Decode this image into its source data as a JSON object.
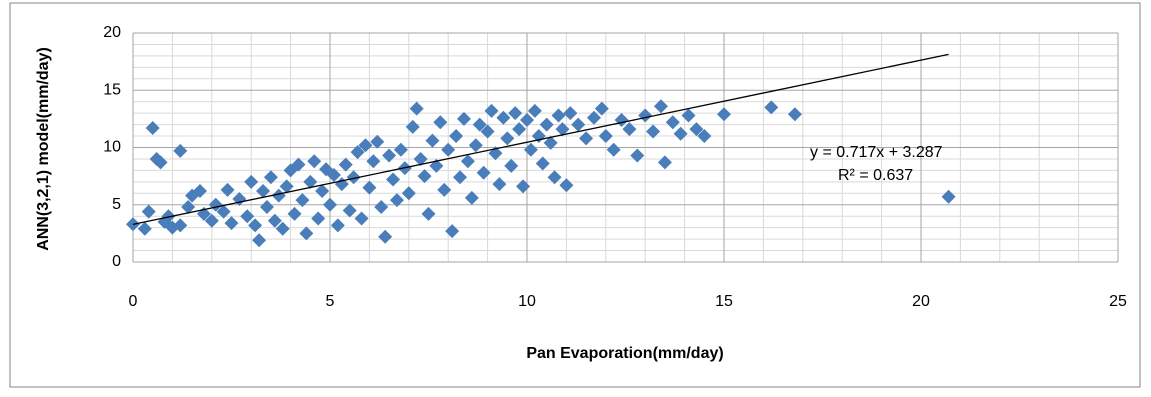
{
  "chart_data": {
    "type": "scatter",
    "xlabel": "Pan Evaporation(mm/day)",
    "ylabel": "ANN(3,2,1) model(mm/day)",
    "color": "#4a7ebb",
    "xlim": [
      0,
      25
    ],
    "xticks": [
      0,
      5,
      10,
      15,
      20,
      25
    ],
    "ylim": [
      0,
      20
    ],
    "yticks": [
      0,
      5,
      10,
      15,
      20
    ],
    "grid": true,
    "minor_xticks": [
      1,
      2,
      3,
      4,
      6,
      7,
      8,
      9,
      11,
      12,
      13,
      14,
      16,
      17,
      18,
      19,
      21,
      22,
      23,
      24
    ],
    "minor_yticks": [
      1,
      2,
      3,
      4,
      6,
      7,
      8,
      9,
      11,
      12,
      13,
      14,
      16,
      17,
      18,
      19
    ],
    "x": [
      0,
      0.3,
      0.4,
      0.5,
      0.6,
      0.7,
      0.8,
      0.9,
      1.0,
      1.2,
      1.2,
      1.4,
      1.5,
      1.7,
      1.8,
      2.0,
      2.1,
      2.3,
      2.4,
      2.5,
      2.7,
      2.9,
      3.0,
      3.1,
      3.2,
      3.3,
      3.4,
      3.5,
      3.6,
      3.7,
      3.8,
      3.9,
      4.0,
      4.1,
      4.2,
      4.3,
      4.4,
      4.5,
      4.6,
      4.7,
      4.8,
      4.9,
      5.0,
      5.1,
      5.2,
      5.3,
      5.4,
      5.5,
      5.6,
      5.7,
      5.8,
      5.9,
      6.0,
      6.1,
      6.2,
      6.3,
      6.4,
      6.5,
      6.6,
      6.7,
      6.8,
      6.9,
      7.0,
      7.1,
      7.2,
      7.3,
      7.4,
      7.5,
      7.6,
      7.7,
      7.8,
      7.9,
      8.0,
      8.1,
      8.2,
      8.3,
      8.4,
      8.5,
      8.6,
      8.7,
      8.8,
      8.9,
      9.0,
      9.1,
      9.2,
      9.3,
      9.4,
      9.5,
      9.6,
      9.7,
      9.8,
      9.9,
      10.0,
      10.1,
      10.2,
      10.3,
      10.4,
      10.5,
      10.6,
      10.7,
      10.8,
      10.9,
      11.0,
      11.1,
      11.3,
      11.5,
      11.7,
      11.9,
      12.0,
      12.2,
      12.4,
      12.6,
      12.8,
      13.0,
      13.2,
      13.4,
      13.5,
      13.7,
      13.9,
      14.1,
      14.3,
      14.5,
      15.0,
      16.2,
      16.8,
      20.7
    ],
    "values": [
      3.3,
      2.9,
      4.4,
      11.7,
      9.0,
      8.7,
      3.5,
      4.0,
      3.0,
      9.7,
      3.2,
      4.8,
      5.8,
      6.2,
      4.2,
      3.6,
      5.0,
      4.4,
      6.3,
      3.4,
      5.5,
      4.0,
      7.0,
      3.2,
      1.9,
      6.2,
      4.8,
      7.4,
      3.6,
      5.8,
      2.9,
      6.6,
      8.0,
      4.2,
      8.5,
      5.4,
      2.5,
      7.0,
      8.8,
      3.8,
      6.2,
      8.1,
      5.0,
      7.6,
      3.2,
      6.8,
      8.5,
      4.5,
      7.4,
      9.6,
      3.8,
      10.2,
      6.5,
      8.8,
      10.5,
      4.8,
      2.2,
      9.3,
      7.2,
      5.4,
      9.8,
      8.2,
      6.0,
      11.8,
      13.4,
      9.0,
      7.5,
      4.2,
      10.6,
      8.4,
      12.2,
      6.3,
      9.8,
      2.7,
      11.0,
      7.4,
      12.5,
      8.8,
      5.6,
      10.2,
      12.0,
      7.8,
      11.4,
      13.2,
      9.5,
      6.8,
      12.6,
      10.8,
      8.4,
      13.0,
      11.6,
      6.6,
      12.4,
      9.8,
      13.2,
      11.0,
      8.6,
      12.0,
      10.4,
      7.4,
      12.8,
      11.6,
      6.7,
      13.0,
      12.0,
      10.8,
      12.6,
      13.4,
      11.0,
      9.8,
      12.4,
      11.6,
      9.3,
      12.8,
      11.4,
      13.6,
      8.7,
      12.2,
      11.2,
      12.8,
      11.6,
      11.0,
      12.9,
      13.5,
      12.9,
      5.7
    ],
    "trendline": {
      "slope": 0.717,
      "intercept": 3.287,
      "xrange": [
        0,
        20.7
      ]
    },
    "annotations": [
      "y = 0.717x + 3.287",
      "R² = 0.637"
    ]
  }
}
